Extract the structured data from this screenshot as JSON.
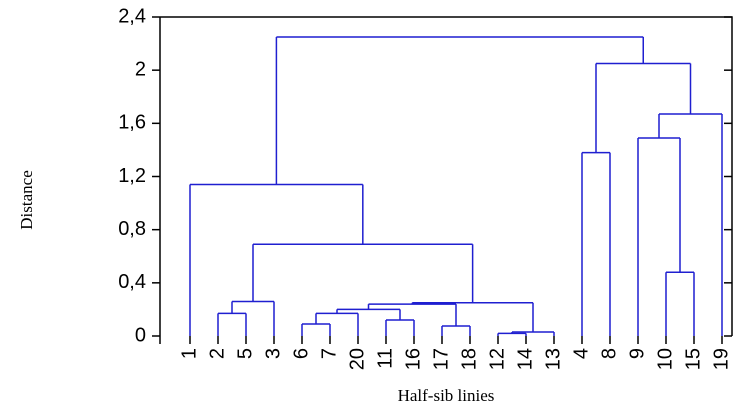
{
  "chart_data": {
    "type": "dendrogram",
    "y_label": "Distance",
    "x_label": "Half-sib linies",
    "color": "#1f1fd0",
    "ylim": [
      0,
      2.4
    ],
    "yticks": [
      0,
      {
        "value": 0.4,
        "label": "0,4"
      },
      {
        "value": 0.8,
        "label": "0,8"
      },
      {
        "value": 1.2,
        "label": "1,2"
      },
      {
        "value": 1.6,
        "label": "1,6"
      },
      2,
      {
        "value": 2.4,
        "label": "2,4"
      }
    ],
    "tree": {
      "height": 2.25,
      "children": [
        {
          "height": 1.14,
          "children": [
            "1",
            {
              "height": 0.69,
              "children": [
                {
                  "height": 0.26,
                  "children": [
                    {
                      "height": 0.17,
                      "children": [
                        "2",
                        "5"
                      ]
                    },
                    "3"
                  ]
                },
                {
                  "height": 0.25,
                  "children": [
                    {
                      "height": 0.24,
                      "children": [
                        {
                          "height": 0.2,
                          "children": [
                            {
                              "height": 0.17,
                              "children": [
                                {
                                  "height": 0.09,
                                  "children": [
                                    "6",
                                    "7"
                                  ]
                                },
                                "20"
                              ]
                            },
                            {
                              "height": 0.12,
                              "children": [
                                "11",
                                "16"
                              ]
                            }
                          ]
                        },
                        {
                          "height": 0.075,
                          "children": [
                            "17",
                            "18"
                          ]
                        }
                      ]
                    },
                    {
                      "height": 0.03,
                      "children": [
                        {
                          "height": 0.02,
                          "children": [
                            "12",
                            "14"
                          ]
                        },
                        "13"
                      ]
                    }
                  ]
                }
              ]
            }
          ]
        },
        {
          "height": 2.05,
          "children": [
            {
              "height": 1.38,
              "children": [
                "4",
                "8"
              ]
            },
            {
              "height": 1.67,
              "children": [
                {
                  "height": 1.49,
                  "children": [
                    "9",
                    {
                      "height": 0.48,
                      "children": [
                        "10",
                        "15"
                      ]
                    }
                  ]
                },
                "19"
              ]
            }
          ]
        }
      ]
    }
  }
}
